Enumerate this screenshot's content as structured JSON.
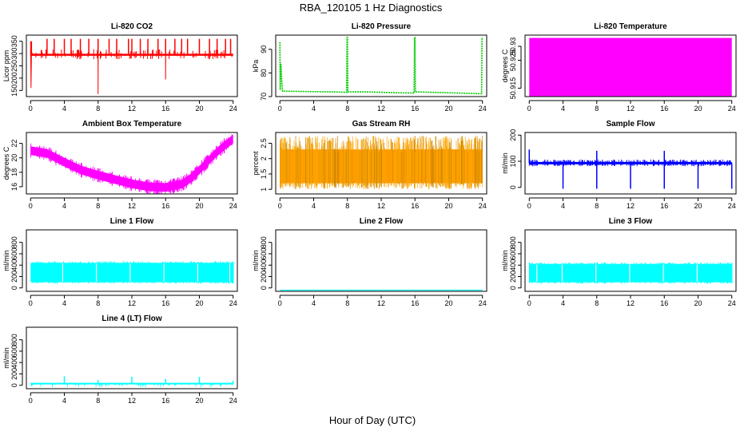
{
  "figure": {
    "title": "RBA_120105  1 Hz Diagnostics",
    "xlabel": "Hour of Day (UTC)"
  },
  "chart_data": [
    {
      "type": "line",
      "title": "Li-820 CO2",
      "ylabel": "Licor ppm",
      "color": "#ff0000",
      "xticks": [
        0,
        4,
        8,
        12,
        16,
        20,
        24
      ],
      "xlim": [
        -0.5,
        24.5
      ],
      "yticks": [
        150,
        200,
        250,
        300,
        350
      ],
      "ylim": [
        125,
        375
      ],
      "baseline": 295,
      "x": [
        0,
        0.05,
        0.1,
        0.3,
        1.0,
        2.0,
        3.0,
        4.0,
        5.0,
        6.0,
        7.0,
        7.99,
        8.0,
        8.01,
        9.0,
        10.0,
        11.0,
        12.0,
        13.0,
        14.0,
        15.0,
        15.99,
        16.0,
        16.01,
        17.0,
        18.0,
        19.0,
        20.0,
        21.0,
        22.0,
        23.0,
        24.0
      ],
      "y": [
        350,
        160,
        295,
        295,
        295,
        295,
        295,
        295,
        295,
        295,
        295,
        295,
        135,
        295,
        295,
        295,
        295,
        295,
        295,
        295,
        295,
        295,
        195,
        295,
        295,
        295,
        295,
        295,
        295,
        295,
        295,
        295
      ],
      "spikes": [
        0.1,
        1.3,
        1.95,
        2.8,
        4.0,
        4.8,
        5.9,
        6.9,
        8.0,
        9.3,
        10.2,
        11.6,
        12.0,
        13.0,
        13.9,
        15.1,
        16.0,
        17.1,
        17.9,
        18.6,
        20.0,
        21.2,
        22.1,
        23.1,
        23.7
      ],
      "spike_tops": [
        350,
        315,
        360,
        360,
        360,
        360,
        360,
        360,
        360,
        360,
        360,
        360,
        360,
        360,
        360,
        360,
        360,
        360,
        360,
        360,
        360,
        360,
        360,
        360,
        360
      ]
    },
    {
      "type": "line",
      "title": "Li-820 Pressure",
      "ylabel": "kPa",
      "color": "#00cc00",
      "xticks": [
        0,
        4,
        8,
        12,
        16,
        20,
        24
      ],
      "xlim": [
        -0.5,
        24.5
      ],
      "yticks": [
        70,
        80,
        90
      ],
      "ylim": [
        70,
        96
      ],
      "x": [
        0,
        0.03,
        0.1,
        0.3,
        2,
        4,
        6,
        7.9,
        7.95,
        8.0,
        8.05,
        10,
        12,
        14,
        15.9,
        15.95,
        16.0,
        16.05,
        18,
        20,
        22,
        23.9,
        23.95,
        24.0
      ],
      "y": [
        93,
        72.8,
        84,
        72.3,
        72.2,
        72.1,
        72.0,
        71.8,
        95,
        95,
        72.0,
        72.0,
        71.8,
        71.6,
        71.5,
        95,
        95,
        72.0,
        71.8,
        71.6,
        71.4,
        71.2,
        95,
        95
      ]
    },
    {
      "type": "area",
      "title": "Li-820 Temperature",
      "ylabel": "degrees C",
      "color": "#ff00ff",
      "xticks": [
        0,
        4,
        8,
        12,
        16,
        20,
        24
      ],
      "xlim": [
        -0.5,
        24.5
      ],
      "yticks": [
        50.915,
        50.925,
        50.93
      ],
      "ylim": [
        50.912,
        50.934
      ],
      "x": [
        0,
        24
      ],
      "ymin": 50.912,
      "ymax": 50.933
    },
    {
      "type": "area",
      "title": "Ambient Box Temperature",
      "ylabel": "degrees C",
      "color": "#ff00ff",
      "xticks": [
        0,
        4,
        8,
        12,
        16,
        20,
        24
      ],
      "xlim": [
        -0.5,
        24.5
      ],
      "yticks": [
        16,
        18,
        20,
        22
      ],
      "ylim": [
        15,
        23.5
      ],
      "x": [
        0,
        2,
        4,
        6,
        8,
        10,
        12,
        14,
        16,
        18,
        19,
        20,
        21,
        22,
        23,
        24
      ],
      "center": [
        21.0,
        20.6,
        19.4,
        18.3,
        17.6,
        17.0,
        16.4,
        16.0,
        15.9,
        16.4,
        17.2,
        18.3,
        19.5,
        20.7,
        21.7,
        22.6
      ],
      "halfwidth": 0.6
    },
    {
      "type": "area",
      "title": "Gas Stream RH",
      "ylabel": "percent",
      "color": "#ffa500",
      "xticks": [
        0,
        4,
        8,
        12,
        16,
        20,
        24
      ],
      "xlim": [
        -0.5,
        24.5
      ],
      "yticks": [
        1.0,
        1.5,
        2.0,
        2.5
      ],
      "ylim": [
        0.85,
        2.85
      ],
      "x": [
        0,
        24
      ],
      "ymin": 1.05,
      "ymax": 2.55
    },
    {
      "type": "line",
      "title": "Sample Flow",
      "ylabel": "ml/min",
      "color": "#0000ff",
      "xticks": [
        0,
        4,
        8,
        12,
        16,
        20,
        24
      ],
      "xlim": [
        -0.5,
        24.5
      ],
      "yticks": [
        0,
        100,
        200
      ],
      "ylim": [
        -25,
        210
      ],
      "base": 93,
      "dips": [
        4,
        8,
        12,
        16,
        20,
        24
      ],
      "peaks": [
        0,
        8,
        16
      ],
      "peak_values": [
        145,
        140,
        140
      ]
    },
    {
      "type": "area",
      "title": "Line 1 Flow",
      "ylabel": "ml/min",
      "color": "#00ffff",
      "xticks": [
        0,
        4,
        8,
        12,
        16,
        20,
        24
      ],
      "xlim": [
        -0.5,
        24.5
      ],
      "yticks": [
        0,
        200,
        400,
        600,
        800
      ],
      "ylim": [
        -60,
        1020
      ],
      "x": [
        0,
        24
      ],
      "ymin": 80,
      "ymax": 460,
      "gaps": [
        3.8,
        7.8,
        11.8,
        15.8,
        19.8,
        23.6
      ]
    },
    {
      "type": "line",
      "title": "Line 2 Flow",
      "ylabel": "ml/min",
      "color": "#00ffff",
      "xticks": [
        0,
        4,
        8,
        12,
        16,
        20,
        24
      ],
      "xlim": [
        -0.5,
        24.5
      ],
      "yticks": [
        0,
        200,
        400,
        600,
        800
      ],
      "ylim": [
        -60,
        1020
      ],
      "x": [
        0,
        24
      ],
      "y": [
        -40,
        -40
      ]
    },
    {
      "type": "area",
      "title": "Line 3 Flow",
      "ylabel": "ml/min",
      "color": "#00ffff",
      "xticks": [
        0,
        4,
        8,
        12,
        16,
        20,
        24
      ],
      "xlim": [
        -0.5,
        24.5
      ],
      "yticks": [
        0,
        200,
        400,
        600,
        800
      ],
      "ylim": [
        -60,
        1020
      ],
      "x": [
        0,
        24
      ],
      "ymin": 80,
      "ymax": 440,
      "gaps": [
        0.9,
        3.9,
        7.9,
        11.9,
        15.9,
        19.9
      ]
    },
    {
      "type": "line",
      "title": "Line 4 (LT) Flow",
      "ylabel": "ml/min",
      "color": "#00ffff",
      "xticks": [
        0,
        4,
        8,
        12,
        16,
        20,
        24
      ],
      "xlim": [
        -0.5,
        24.5
      ],
      "yticks": [
        0,
        200,
        400,
        600,
        800
      ],
      "ylim": [
        -60,
        1020
      ],
      "base": 30,
      "spikes": [
        4,
        8,
        12,
        16,
        20,
        24
      ],
      "spike_values": [
        160,
        90,
        150,
        110,
        150,
        80
      ]
    }
  ]
}
